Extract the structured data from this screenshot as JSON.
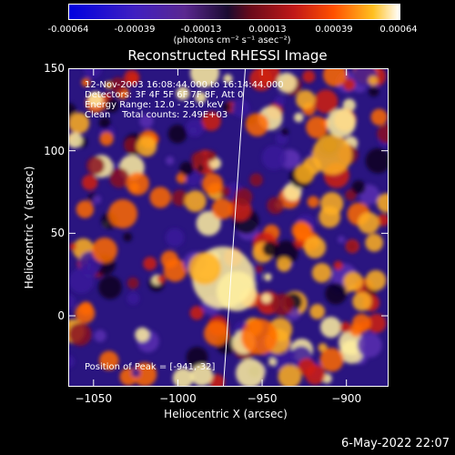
{
  "colorbar": {
    "ticks": [
      "-0.00064",
      "-0.00039",
      "-0.00013",
      "0.00013",
      "0.00039",
      "0.00064"
    ],
    "unit_label": "(photons cm⁻² s⁻¹ asec⁻²)"
  },
  "info": {
    "time_range": "12-Nov-2003 16:08:44.000 to 16:14:44.000",
    "detectors": "Detectors: 3F 4F 5F 6F 7F 8F, Att 0",
    "energy_range": "Energy Range: 12.0 - 25.0 keV",
    "clean_counts": "Clean    Total counts: 2.49E+03"
  },
  "peak_label": "Position of Peak = [-941,-32]",
  "footer_date": "6-May-2022 22:07",
  "chart_data": {
    "type": "heatmap",
    "title": "Reconstructed RHESSI Image",
    "xlabel": "Heliocentric X (arcsec)",
    "ylabel": "Heliocentric Y (arcsec)",
    "xlim": [
      -1065,
      -875
    ],
    "ylim": [
      -43,
      150
    ],
    "x_ticks": [
      -1050,
      -1000,
      -950,
      -900
    ],
    "y_ticks": [
      0,
      50,
      100,
      150
    ],
    "x_tick_labels": [
      "−1050",
      "−1000",
      "−950",
      "−900"
    ],
    "y_tick_labels": [
      "0",
      "50",
      "100",
      "150"
    ],
    "color_range": [
      -0.00064,
      0.00064
    ],
    "peak_position": [
      -941,
      -32
    ],
    "limb_line": [
      [
        -973,
        -43
      ],
      [
        -960,
        150
      ]
    ]
  }
}
